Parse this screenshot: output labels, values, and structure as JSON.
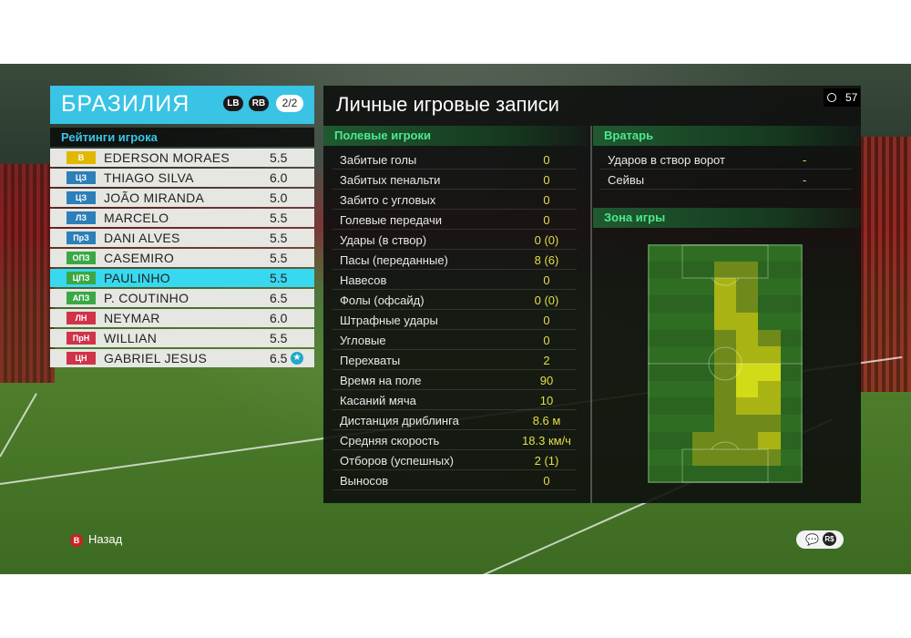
{
  "team": {
    "name": "БРАЗИЛИЯ",
    "lb": "LB",
    "rb": "RB",
    "page": "2/2"
  },
  "ratings_title": "Рейтинги игрока",
  "players": [
    {
      "pos": "В",
      "pos_color": "#e0b800",
      "name": "EDERSON MORAES",
      "rating": "5.5"
    },
    {
      "pos": "ЦЗ",
      "pos_color": "#2c7fb8",
      "name": "THIAGO SILVA",
      "rating": "6.0"
    },
    {
      "pos": "ЦЗ",
      "pos_color": "#2c7fb8",
      "name": "JOÃO MIRANDA",
      "rating": "5.0"
    },
    {
      "pos": "ЛЗ",
      "pos_color": "#2c7fb8",
      "name": "MARCELO",
      "rating": "5.5"
    },
    {
      "pos": "ПрЗ",
      "pos_color": "#2c7fb8",
      "name": "DANI ALVES",
      "rating": "5.5"
    },
    {
      "pos": "ОПЗ",
      "pos_color": "#3aa845",
      "name": "CASEMIRO",
      "rating": "5.5"
    },
    {
      "pos": "ЦПЗ",
      "pos_color": "#3aa845",
      "name": "PAULINHO",
      "rating": "5.5",
      "selected": true
    },
    {
      "pos": "АПЗ",
      "pos_color": "#3aa845",
      "name": "P. COUTINHO",
      "rating": "6.5"
    },
    {
      "pos": "ЛН",
      "pos_color": "#d0334a",
      "name": "NEYMAR",
      "rating": "6.0"
    },
    {
      "pos": "ПрН",
      "pos_color": "#d0334a",
      "name": "WILLIAN",
      "rating": "5.5"
    },
    {
      "pos": "ЦН",
      "pos_color": "#d0334a",
      "name": "GABRIEL JESUS",
      "rating": "6.5",
      "star": "★"
    }
  ],
  "records_title": "Личные игровые записи",
  "timer": "57",
  "field_section_title": "Полевые игроки",
  "field_stats": [
    {
      "label": "Забитые голы",
      "value": "0"
    },
    {
      "label": "Забитых пенальти",
      "value": "0"
    },
    {
      "label": "Забито с угловых",
      "value": "0"
    },
    {
      "label": "Голевые передачи",
      "value": "0"
    },
    {
      "label": "Удары (в створ)",
      "value": "0 (0)"
    },
    {
      "label": "Пасы (переданные)",
      "value": "8 (6)"
    },
    {
      "label": "Навесов",
      "value": "0"
    },
    {
      "label": "Фолы (офсайд)",
      "value": "0 (0)"
    },
    {
      "label": "Штрафные удары",
      "value": "0"
    },
    {
      "label": "Угловые",
      "value": "0"
    },
    {
      "label": "Перехваты",
      "value": "2"
    },
    {
      "label": "Время на поле",
      "value": "90"
    },
    {
      "label": "Касаний мяча",
      "value": "10"
    },
    {
      "label": "Дистанция дриблинга",
      "value": "8.6 м"
    },
    {
      "label": "Средняя скорость",
      "value": "18.3 км/ч"
    },
    {
      "label": "Отборов (успешных)",
      "value": "2 (1)"
    },
    {
      "label": "Выносов",
      "value": "0"
    }
  ],
  "gk_section_title": "Вратарь",
  "gk_stats": [
    {
      "label": "Ударов в створ ворот",
      "value": "-"
    },
    {
      "label": "Сейвы",
      "value": "-"
    }
  ],
  "zone_title": "Зона игры",
  "heatmap": {
    "cols": 7,
    "rows": 14,
    "grid": [
      [
        0,
        0,
        0,
        0,
        0,
        0,
        0
      ],
      [
        0,
        0,
        0,
        1,
        1,
        0,
        0
      ],
      [
        0,
        0,
        0,
        2,
        1,
        0,
        0
      ],
      [
        0,
        0,
        0,
        2,
        1,
        0,
        0
      ],
      [
        0,
        0,
        0,
        2,
        2,
        0,
        0
      ],
      [
        0,
        0,
        0,
        1,
        2,
        1,
        0
      ],
      [
        0,
        0,
        0,
        1,
        2,
        2,
        0
      ],
      [
        0,
        0,
        0,
        1,
        3,
        3,
        0
      ],
      [
        0,
        0,
        0,
        1,
        3,
        2,
        0
      ],
      [
        0,
        0,
        0,
        1,
        2,
        2,
        0
      ],
      [
        0,
        0,
        0,
        1,
        1,
        1,
        0
      ],
      [
        0,
        0,
        1,
        1,
        1,
        2,
        0
      ],
      [
        0,
        0,
        1,
        1,
        1,
        1,
        0
      ],
      [
        0,
        0,
        0,
        0,
        0,
        0,
        0
      ]
    ],
    "colors": [
      "#2e6b22",
      "#6f8a1a",
      "#a9b414",
      "#d2db17"
    ]
  },
  "back_button": {
    "key": "B",
    "label": "Назад"
  },
  "bottom_icons": {
    "chat": "💬",
    "money": "R$"
  }
}
